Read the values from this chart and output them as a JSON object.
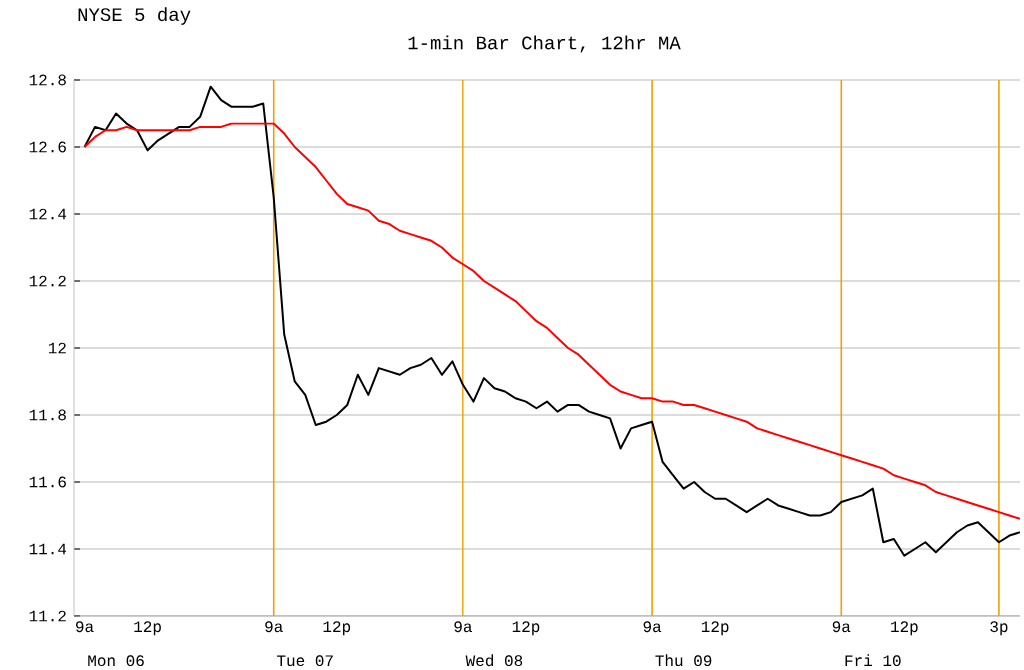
{
  "chart_data": {
    "type": "line",
    "title": "NYSE 5 day",
    "subtitle": "1-min Bar Chart, 12hr MA",
    "categories": [
      null,
      "9a",
      null,
      null,
      "Mon 06",
      null,
      null,
      "12p",
      null,
      null,
      null,
      null,
      null,
      null,
      null,
      null,
      null,
      null,
      null,
      "9a",
      null,
      null,
      "Tue 07",
      null,
      null,
      "12p",
      null,
      null,
      null,
      null,
      null,
      null,
      null,
      null,
      null,
      null,
      null,
      "9a",
      null,
      null,
      "Wed 08",
      null,
      null,
      "12p",
      null,
      null,
      null,
      null,
      null,
      null,
      null,
      null,
      null,
      null,
      null,
      "9a",
      null,
      null,
      "Thu 09",
      null,
      null,
      "12p",
      null,
      null,
      null,
      null,
      null,
      null,
      null,
      null,
      null,
      null,
      null,
      "9a",
      null,
      null,
      "Fri 10",
      null,
      null,
      "12p",
      null,
      null,
      null,
      null,
      null,
      null,
      null,
      null,
      "3p",
      null,
      null
    ],
    "ylim": [
      11.2,
      12.8
    ],
    "yticks": [
      11.2,
      11.4,
      11.6,
      11.8,
      12,
      12.2,
      12.4,
      12.6,
      12.8
    ],
    "grid": "y",
    "series": [
      {
        "color": "#000000",
        "values": [
          null,
          12.6,
          12.66,
          12.65,
          12.7,
          12.67,
          12.65,
          12.59,
          12.62,
          12.64,
          12.66,
          12.66,
          12.69,
          12.78,
          12.74,
          12.72,
          12.72,
          12.72,
          12.73,
          12.45,
          12.04,
          11.9,
          11.86,
          11.77,
          11.78,
          11.8,
          11.83,
          11.92,
          11.86,
          11.94,
          11.93,
          11.92,
          11.94,
          11.95,
          11.97,
          11.92,
          11.96,
          11.89,
          11.84,
          11.91,
          11.88,
          11.87,
          11.85,
          11.84,
          11.82,
          11.84,
          11.81,
          11.83,
          11.83,
          11.81,
          11.8,
          11.79,
          11.7,
          11.76,
          11.77,
          11.78,
          11.66,
          11.62,
          11.58,
          11.6,
          11.57,
          11.55,
          11.55,
          11.53,
          11.51,
          11.53,
          11.55,
          11.53,
          11.52,
          11.51,
          11.5,
          11.5,
          11.51,
          11.54,
          11.55,
          11.56,
          11.58,
          11.42,
          11.43,
          11.38,
          11.4,
          11.42,
          11.39,
          11.42,
          11.45,
          11.47,
          11.48,
          11.45,
          11.42,
          11.44,
          11.45
        ]
      },
      {
        "color": "#ff0000",
        "values": [
          null,
          12.6,
          12.63,
          12.65,
          12.65,
          12.66,
          12.65,
          12.65,
          12.65,
          12.65,
          12.65,
          12.65,
          12.66,
          12.66,
          12.66,
          12.67,
          12.67,
          12.67,
          12.67,
          12.67,
          12.64,
          12.6,
          12.57,
          12.54,
          12.5,
          12.46,
          12.43,
          12.42,
          12.41,
          12.38,
          12.37,
          12.35,
          12.34,
          12.33,
          12.32,
          12.3,
          12.27,
          12.25,
          12.23,
          12.2,
          12.18,
          12.16,
          12.14,
          12.11,
          12.08,
          12.06,
          12.03,
          12.0,
          11.98,
          11.95,
          11.92,
          11.89,
          11.87,
          11.86,
          11.85,
          11.85,
          11.84,
          11.84,
          11.83,
          11.83,
          11.82,
          11.81,
          11.8,
          11.79,
          11.78,
          11.76,
          11.75,
          11.74,
          11.73,
          11.72,
          11.71,
          11.7,
          11.69,
          11.68,
          11.67,
          11.66,
          11.65,
          11.64,
          11.62,
          11.61,
          11.6,
          11.59,
          11.57,
          11.56,
          11.55,
          11.54,
          11.53,
          11.52,
          11.51,
          11.5,
          11.49
        ]
      }
    ]
  }
}
